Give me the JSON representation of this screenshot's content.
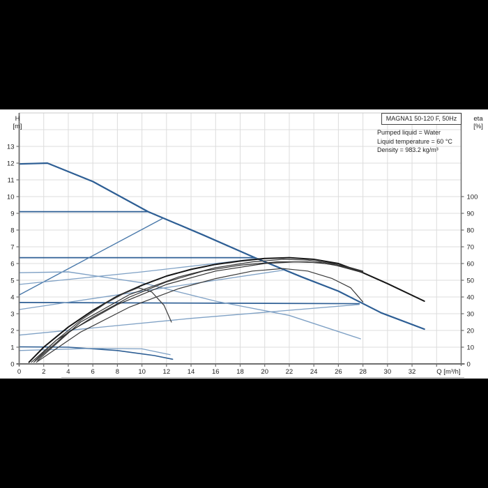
{
  "page": {
    "background": "#000000",
    "band_background": "#ffffff"
  },
  "chart_data": {
    "type": "line",
    "title": "MAGNA1 50-120 F, 50Hz",
    "info_lines": [
      "Pumped liquid = Water",
      "Liquid temperature = 60 °C",
      "Density = 983.2 kg/m³"
    ],
    "x_axis": {
      "label": "Q [m³/h]",
      "min": 0,
      "max": 36,
      "tick_labels": [
        0,
        2,
        4,
        6,
        8,
        10,
        12,
        14,
        16,
        18,
        20,
        22,
        24,
        26,
        28,
        30,
        32
      ],
      "tick_marks": [
        0,
        2,
        4,
        6,
        8,
        10,
        12,
        14,
        16,
        18,
        20,
        22,
        24,
        26,
        28,
        30,
        32,
        34
      ]
    },
    "y_left": {
      "name": "H",
      "unit": "[m]",
      "min": 0,
      "max": 15,
      "tick_labels": [
        0,
        1,
        2,
        3,
        4,
        5,
        6,
        7,
        8,
        9,
        10,
        11,
        12,
        13
      ]
    },
    "y_right": {
      "name": "eta",
      "unit": "[%]",
      "min": 0,
      "max": 150,
      "tick_labels": [
        0,
        10,
        20,
        30,
        40,
        50,
        60,
        70,
        80,
        90,
        100
      ]
    },
    "grid": {
      "on": true,
      "x_step": 2,
      "y_step_m": 1,
      "color": "#dcdcdc"
    },
    "colors": {
      "blue_dark": "#2d5e94",
      "blue_mid": "#4878aa",
      "blue_light": "#7fa1c5",
      "black_main": "#151515",
      "black_thin": "#303030",
      "black_soft": "#454545",
      "axis": "#6e6e6e",
      "text": "#222222"
    },
    "head_curves": [
      {
        "name": "max-speed-curve",
        "color": "#2d5e94",
        "width": 2.2,
        "points": [
          [
            0,
            11.95
          ],
          [
            2.3,
            12.0
          ],
          [
            6,
            10.9
          ],
          [
            10.5,
            9.1
          ],
          [
            15,
            7.7
          ],
          [
            19.2,
            6.35
          ],
          [
            23,
            5.2
          ],
          [
            26,
            4.35
          ],
          [
            29.5,
            3.05
          ],
          [
            33,
            2.08
          ]
        ]
      },
      {
        "name": "min-speed-curve",
        "color": "#2d5e94",
        "width": 1.6,
        "points": [
          [
            0,
            1.02
          ],
          [
            4,
            1.0
          ],
          [
            8,
            0.8
          ],
          [
            11,
            0.5
          ],
          [
            12.5,
            0.28
          ]
        ]
      },
      {
        "name": "const-pressure-9",
        "color": "#2d5e94",
        "width": 1.7,
        "points": [
          [
            0,
            9.1
          ],
          [
            10.5,
            9.1
          ]
        ]
      },
      {
        "name": "const-pressure-6",
        "color": "#2d5e94",
        "width": 1.7,
        "points": [
          [
            0,
            6.35
          ],
          [
            19.2,
            6.35
          ]
        ]
      },
      {
        "name": "const-pressure-3.7",
        "color": "#2d5e94",
        "width": 1.7,
        "points": [
          [
            0,
            3.67
          ],
          [
            27.7,
            3.6
          ]
        ]
      },
      {
        "name": "prop-pressure-max",
        "color": "#4878aa",
        "width": 1.4,
        "points": [
          [
            0,
            4.12
          ],
          [
            11.7,
            8.7
          ]
        ]
      },
      {
        "name": "mid-speed-curve",
        "color": "#7fa1c5",
        "width": 1.4,
        "points": [
          [
            0,
            5.45
          ],
          [
            4,
            5.5
          ],
          [
            10,
            4.85
          ],
          [
            16,
            3.75
          ],
          [
            22,
            2.9
          ],
          [
            27.8,
            1.5
          ]
        ]
      },
      {
        "name": "setpoint-curve-1",
        "color": "#7fa1c5",
        "width": 1.3,
        "points": [
          [
            0,
            4.75
          ],
          [
            10,
            5.5
          ],
          [
            19.5,
            6.3
          ]
        ]
      },
      {
        "name": "setpoint-curve-2",
        "color": "#7fa1c5",
        "width": 1.3,
        "points": [
          [
            0,
            3.25
          ],
          [
            11.9,
            4.55
          ],
          [
            21.5,
            5.6
          ]
        ]
      },
      {
        "name": "setpoint-curve-3",
        "color": "#7fa1c5",
        "width": 1.3,
        "points": [
          [
            0,
            1.72
          ],
          [
            14,
            2.72
          ],
          [
            27.7,
            3.55
          ]
        ]
      },
      {
        "name": "setpoint-curve-4",
        "color": "#7fa1c5",
        "width": 1.3,
        "points": [
          [
            0,
            0.8
          ],
          [
            6,
            0.93
          ],
          [
            10,
            0.9
          ],
          [
            12.3,
            0.55
          ]
        ]
      }
    ],
    "eta_curves": [
      {
        "name": "eta-max-curve",
        "color": "#151515",
        "width": 2.0,
        "points": [
          [
            0.8,
            1
          ],
          [
            2,
            10
          ],
          [
            4,
            22
          ],
          [
            6,
            32
          ],
          [
            8,
            40.5
          ],
          [
            10,
            47
          ],
          [
            12,
            52.5
          ],
          [
            14,
            56.5
          ],
          [
            16,
            59.5
          ],
          [
            18,
            61.5
          ],
          [
            20,
            63
          ],
          [
            22,
            63.5
          ],
          [
            24,
            62.5
          ],
          [
            26,
            60
          ],
          [
            28,
            54.5
          ],
          [
            30,
            48
          ],
          [
            33,
            37.5
          ]
        ]
      },
      {
        "name": "eta-curve-2",
        "color": "#303030",
        "width": 1.2,
        "points": [
          [
            1.0,
            1
          ],
          [
            3,
            14
          ],
          [
            6,
            28
          ],
          [
            9,
            40
          ],
          [
            12,
            49
          ],
          [
            15,
            55.5
          ],
          [
            18,
            59
          ],
          [
            21,
            61
          ],
          [
            23.5,
            61
          ],
          [
            25.5,
            59.5
          ],
          [
            28,
            54.5
          ]
        ]
      },
      {
        "name": "eta-curve-3",
        "color": "#303030",
        "width": 1.2,
        "points": [
          [
            1.2,
            1
          ],
          [
            4,
            19
          ],
          [
            8,
            35.5
          ],
          [
            12,
            47.5
          ],
          [
            16,
            55.5
          ],
          [
            20,
            60
          ],
          [
            22.5,
            61
          ],
          [
            24.5,
            60.5
          ],
          [
            26.5,
            58
          ],
          [
            28,
            55
          ]
        ]
      },
      {
        "name": "eta-curve-4",
        "color": "#303030",
        "width": 1.2,
        "points": [
          [
            1.5,
            2
          ],
          [
            5,
            25
          ],
          [
            9,
            41.5
          ],
          [
            13,
            52
          ],
          [
            16,
            57.5
          ],
          [
            19,
            61
          ],
          [
            21.5,
            62.5
          ],
          [
            23.5,
            62
          ],
          [
            25.5,
            60
          ],
          [
            27,
            57.5
          ],
          [
            28,
            55.5
          ]
        ]
      },
      {
        "name": "eta-curve-5",
        "color": "#383838",
        "width": 1.2,
        "points": [
          [
            1.4,
            1
          ],
          [
            5,
            19
          ],
          [
            9,
            34
          ],
          [
            13,
            45
          ],
          [
            16,
            51
          ],
          [
            19,
            55.5
          ],
          [
            21.5,
            57
          ],
          [
            23.5,
            55.5
          ],
          [
            25.5,
            51
          ],
          [
            27,
            45.5
          ],
          [
            28,
            37
          ]
        ]
      },
      {
        "name": "eta-min-curve",
        "color": "#454545",
        "width": 1.3,
        "points": [
          [
            1.3,
            2
          ],
          [
            3,
            14
          ],
          [
            5,
            26
          ],
          [
            7,
            36
          ],
          [
            8.5,
            42
          ],
          [
            9.7,
            45.5
          ],
          [
            10.8,
            43
          ],
          [
            11.8,
            35
          ],
          [
            12.4,
            25
          ]
        ]
      }
    ]
  }
}
